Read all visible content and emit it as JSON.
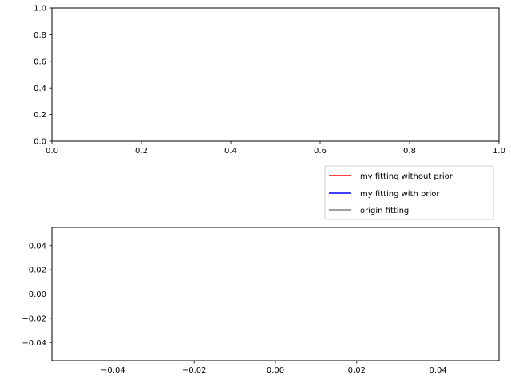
{
  "chart_data": [
    {
      "type": "line",
      "title": "",
      "xlabel": "",
      "ylabel": "",
      "xlim": [
        0,
        1
      ],
      "ylim": [
        0,
        1
      ],
      "xticks": [
        0.0,
        0.2,
        0.4,
        0.6,
        0.8,
        1.0
      ],
      "yticks": [
        0.0,
        0.2,
        0.4,
        0.6,
        0.8,
        1.0
      ],
      "xtick_labels": [
        "0.0",
        "0.2",
        "0.4",
        "0.6",
        "0.8",
        "1.0"
      ],
      "ytick_labels": [
        "0.0",
        "0.2",
        "0.4",
        "0.6",
        "0.8",
        "1.0"
      ],
      "grid": false,
      "series": []
    },
    {
      "type": "line",
      "title": "",
      "xlabel": "",
      "ylabel": "",
      "xlim": [
        -0.055,
        0.055
      ],
      "ylim": [
        -0.055,
        0.055
      ],
      "xticks": [
        -0.04,
        -0.02,
        0.0,
        0.02,
        0.04
      ],
      "yticks": [
        -0.04,
        -0.02,
        0.0,
        0.02,
        0.04
      ],
      "xtick_labels": [
        "−0.04",
        "−0.02",
        "0.00",
        "0.02",
        "0.04"
      ],
      "ytick_labels": [
        "−0.04",
        "−0.02",
        "0.00",
        "0.02",
        "0.04"
      ],
      "grid": false,
      "series": [
        {
          "name": "my fitting without prior",
          "color": "#ff0000",
          "x": [],
          "y": []
        },
        {
          "name": "my fitting with prior",
          "color": "#0000ff",
          "x": [],
          "y": []
        },
        {
          "name": "origin fitting",
          "color": "#808080",
          "x": [],
          "y": []
        }
      ],
      "legend": {
        "placement": "below top axes, right",
        "entries": [
          {
            "label": "my fitting without prior",
            "color": "#ff0000"
          },
          {
            "label": "my fitting with prior",
            "color": "#0000ff"
          },
          {
            "label": "origin fitting",
            "color": "#808080"
          }
        ]
      }
    }
  ]
}
